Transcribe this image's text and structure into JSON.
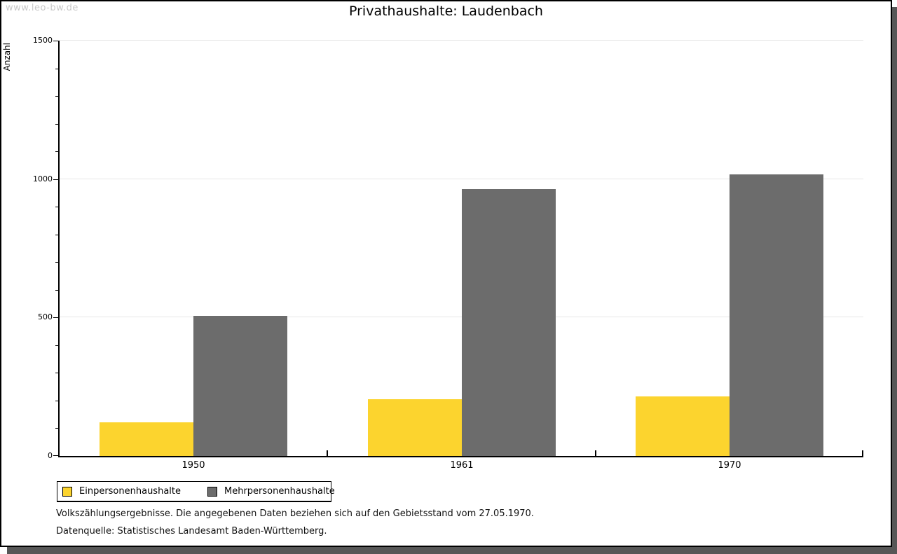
{
  "watermark": "www.leo-bw.de",
  "title": "Privathaushalte: Laudenbach",
  "chart_data": {
    "type": "bar",
    "title": "Privathaushalte: Laudenbach",
    "xlabel": "",
    "ylabel": "Anzahl",
    "categories": [
      "1950",
      "1961",
      "1970"
    ],
    "series": [
      {
        "name": "Einpersonenhaushalte",
        "color": "#FCD42E",
        "values": [
          122,
          205,
          215
        ]
      },
      {
        "name": "Mehrpersonenhaushalte",
        "color": "#6C6C6C",
        "values": [
          505,
          964,
          1017
        ]
      }
    ],
    "ylim": [
      0,
      1500
    ],
    "yticks": [
      0,
      500,
      1000,
      1500
    ],
    "minor_tick_step": 100,
    "grid": true,
    "legend_position": "bottom-left"
  },
  "notes": [
    "Volkszählungsergebnisse. Die angegebenen Daten beziehen sich auf den Gebietsstand vom 27.05.1970.",
    "Datenquelle: Statistisches Landesamt Baden-Württemberg."
  ],
  "colors": {
    "series_1": "#FCD42E",
    "series_2": "#6C6C6C",
    "gridline": "#e7e7e7",
    "frame_shadow": "#575757",
    "watermark": "#c9c9c9"
  }
}
